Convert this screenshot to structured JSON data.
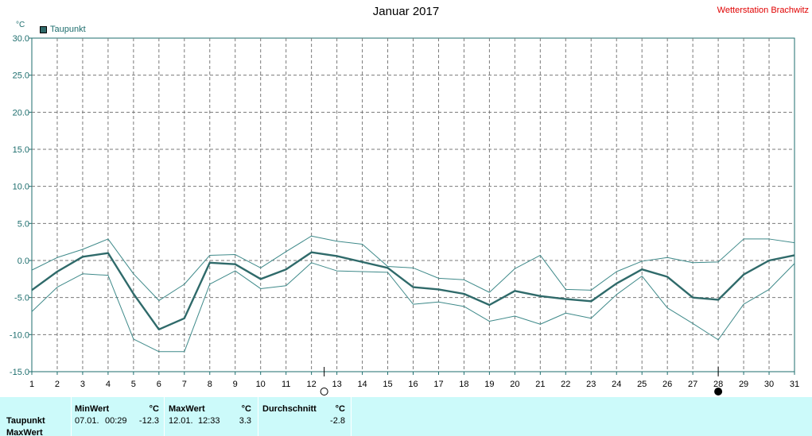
{
  "title": "Januar 2017",
  "station": "Wetterstation Brachwitz",
  "unit": "°C",
  "legend": "Taupunkt",
  "colors": {
    "main": "#2f6a6a",
    "thin": "#3f8a8a",
    "grid": "#7a7a7a",
    "axis": "#1e6e6e",
    "table_bg": "#ccfafa"
  },
  "chart_data": {
    "type": "line",
    "title": "Januar 2017",
    "ylabel": "°C",
    "x": [
      1,
      2,
      3,
      4,
      5,
      6,
      7,
      8,
      9,
      10,
      11,
      12,
      13,
      14,
      15,
      16,
      17,
      18,
      19,
      20,
      21,
      22,
      23,
      24,
      25,
      26,
      27,
      28,
      29,
      30,
      31
    ],
    "ylim": [
      -15,
      30
    ],
    "yticks": [
      "30.0",
      "25.0",
      "20.0",
      "15.0",
      "10.0",
      "5.0",
      "0.0",
      "-5.0",
      "-10.0",
      "-15.0"
    ],
    "grid": true,
    "series": [
      {
        "name": "Taupunkt",
        "values": [
          -4.0,
          -1.5,
          0.5,
          1.0,
          -4.5,
          -9.3,
          -7.8,
          -0.3,
          -0.5,
          -2.5,
          -1.2,
          1.1,
          0.6,
          -0.2,
          -1.0,
          -3.6,
          -3.9,
          -4.5,
          -6.0,
          -4.1,
          -4.8,
          -5.2,
          -5.5,
          -3.1,
          -1.2,
          -2.2,
          -5.0,
          -5.3,
          -1.9,
          0.0,
          0.7
        ]
      },
      {
        "values": [
          -1.3,
          0.4,
          1.5,
          2.9,
          -1.8,
          -5.4,
          -3.2,
          0.7,
          0.8,
          -1.0,
          1.2,
          3.3,
          2.6,
          2.2,
          -0.8,
          -1.0,
          -2.4,
          -2.6,
          -4.3,
          -1.1,
          0.7,
          -3.9,
          -4.0,
          -1.5,
          -0.1,
          0.4,
          -0.3,
          -0.2,
          2.9,
          2.9,
          2.4
        ]
      },
      {
        "values": [
          -6.9,
          -3.6,
          -1.8,
          -2.0,
          -10.6,
          -12.3,
          -12.3,
          -3.2,
          -1.4,
          -3.8,
          -3.4,
          -0.3,
          -1.4,
          -1.5,
          -1.6,
          -5.9,
          -5.6,
          -6.2,
          -8.2,
          -7.5,
          -8.6,
          -7.1,
          -7.8,
          -4.6,
          -2.1,
          -6.4,
          -8.5,
          -10.7,
          -5.9,
          -3.9,
          -0.4
        ]
      }
    ],
    "markers": [
      {
        "x": 12.5,
        "type": "new-moon"
      },
      {
        "x": 28,
        "type": "full-moon"
      }
    ]
  },
  "table": {
    "row_label": "Taupunkt",
    "row_label2": "MaxWert",
    "min": {
      "header": "MinWert",
      "unit": "°C",
      "date": "07.01.",
      "time": "00:29",
      "value": "-12.3"
    },
    "max": {
      "header": "MaxWert",
      "unit": "°C",
      "date": "12.01.",
      "time": "12:33",
      "value": "3.3"
    },
    "avg": {
      "header": "Durchschnitt",
      "unit": "°C",
      "value": "-2.8"
    }
  }
}
